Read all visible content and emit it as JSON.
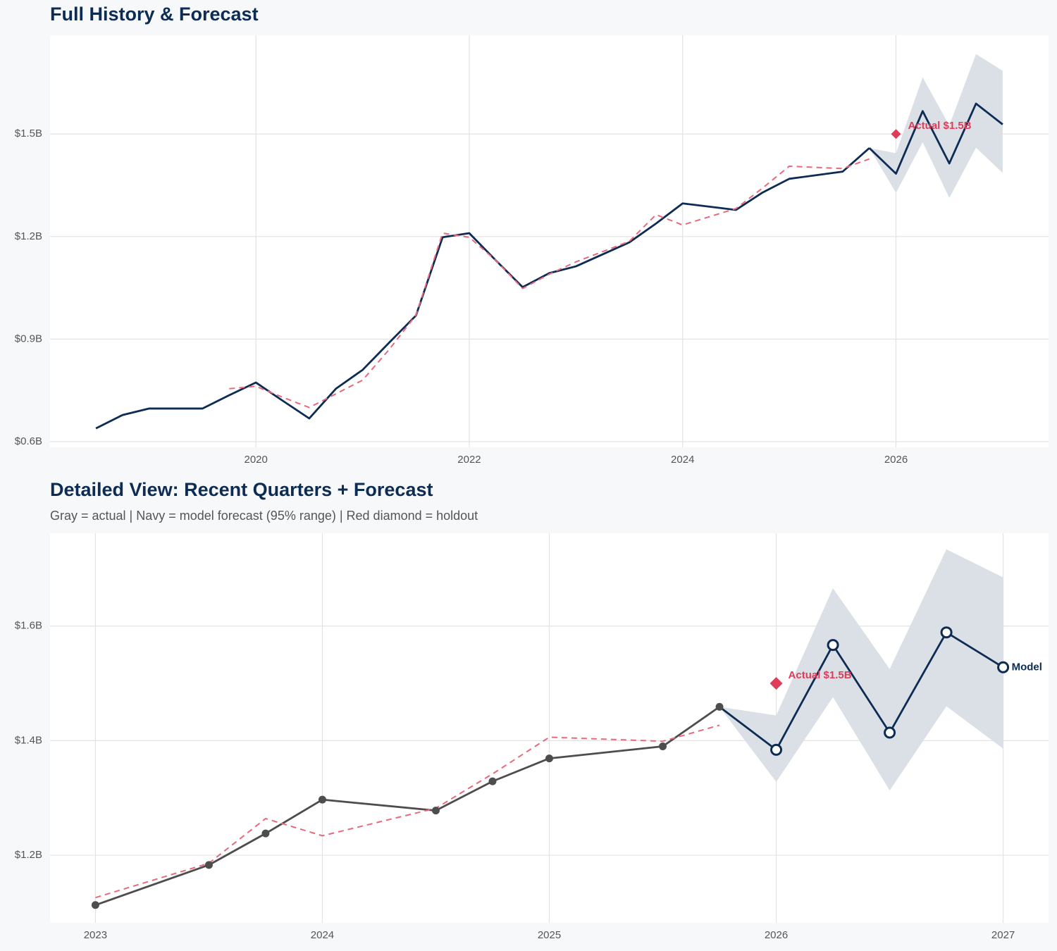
{
  "chart_data": [
    {
      "type": "line",
      "title": "Full History & Forecast",
      "x": [
        2018.5,
        2018.75,
        2019,
        2019.25,
        2019.5,
        2019.75,
        2020,
        2020.25,
        2020.5,
        2020.75,
        2021,
        2021.25,
        2021.5,
        2021.75,
        2022,
        2022.25,
        2022.5,
        2022.75,
        2023,
        2023.5,
        2023.75,
        2024,
        2024.5,
        2024.75,
        2025,
        2025.5,
        2025.75
      ],
      "series": [
        {
          "color": "#0d2c54",
          "values": [
            0.639,
            0.678,
            0.697,
            0.697,
            0.697,
            0.736,
            0.773,
            0.72,
            0.668,
            0.755,
            0.81,
            0.89,
            0.969,
            1.198,
            1.21,
            1.13,
            1.052,
            1.093,
            1.113,
            1.183,
            1.238,
            1.297,
            1.278,
            1.329,
            1.369,
            1.39,
            1.459
          ]
        },
        {
          "color": "#e8697d",
          "dashed": true,
          "values": [
            null,
            null,
            null,
            null,
            null,
            0.755,
            0.762,
            0.73,
            0.7,
            0.74,
            0.78,
            0.87,
            0.97,
            1.21,
            1.198,
            1.13,
            1.048,
            1.09,
            1.126,
            1.186,
            1.264,
            1.234,
            1.282,
            1.342,
            1.406,
            1.399,
            1.427
          ]
        }
      ],
      "forecast": {
        "color": "#0d2c54",
        "band_color": "#d9dee5",
        "x": [
          2025.75,
          2026,
          2026.25,
          2026.5,
          2026.75,
          2027
        ],
        "values": [
          1.459,
          1.384,
          1.567,
          1.414,
          1.589,
          1.528
        ],
        "lower": [
          1.459,
          1.328,
          1.476,
          1.313,
          1.46,
          1.386
        ],
        "upper": [
          1.459,
          1.444,
          1.666,
          1.525,
          1.734,
          1.685
        ]
      },
      "holdout": {
        "x": 2026,
        "value": 1.5,
        "label": "Actual $1.5B",
        "color": "#e03c5a"
      },
      "xlim": [
        2018.07,
        2027.43
      ],
      "ylim": [
        0.5835,
        1.789
      ],
      "xticks": [
        2020,
        2022,
        2024,
        2026
      ],
      "yticks": [
        {
          "value": 0.6,
          "label": "$0.6B"
        },
        {
          "value": 0.9,
          "label": "$0.9B"
        },
        {
          "value": 1.2,
          "label": "$1.2B"
        },
        {
          "value": 1.5,
          "label": "$1.5B"
        }
      ],
      "grid": true,
      "markers": false
    },
    {
      "type": "line",
      "title": "Detailed View: Recent Quarters + Forecast",
      "subtitle": "Gray = actual  |  Navy = model forecast (95% range)  |  Red diamond = holdout",
      "x": [
        2023,
        2023.5,
        2023.75,
        2024,
        2024.5,
        2024.75,
        2025,
        2025.5,
        2025.75
      ],
      "series": [
        {
          "color": "#4d4d4d",
          "values": [
            1.113,
            1.183,
            1.238,
            1.297,
            1.278,
            1.329,
            1.369,
            1.39,
            1.459
          ]
        },
        {
          "color": "#e8697d",
          "dashed": true,
          "values": [
            1.126,
            1.186,
            1.264,
            1.234,
            1.282,
            1.342,
            1.406,
            1.399,
            1.427
          ]
        }
      ],
      "forecast": {
        "color": "#0d2c54",
        "band_color": "#d9dee5",
        "x": [
          2025.75,
          2026,
          2026.25,
          2026.5,
          2026.75,
          2027
        ],
        "values": [
          1.459,
          1.384,
          1.567,
          1.414,
          1.589,
          1.528
        ],
        "lower": [
          1.459,
          1.328,
          1.476,
          1.313,
          1.46,
          1.386
        ],
        "upper": [
          1.459,
          1.444,
          1.666,
          1.525,
          1.734,
          1.685
        ],
        "end_label": "Model"
      },
      "holdout": {
        "x": 2026,
        "value": 1.5,
        "label": "Actual $1.5B",
        "color": "#e03c5a"
      },
      "xlim": [
        2022.8,
        2027.2
      ],
      "ylim": [
        1.082,
        1.762
      ],
      "xticks": [
        2023,
        2024,
        2025,
        2026,
        2027
      ],
      "yticks": [
        {
          "value": 1.2,
          "label": "$1.2B"
        },
        {
          "value": 1.4,
          "label": "$1.4B"
        },
        {
          "value": 1.6,
          "label": "$1.6B"
        }
      ],
      "grid": true,
      "markers": true
    }
  ]
}
